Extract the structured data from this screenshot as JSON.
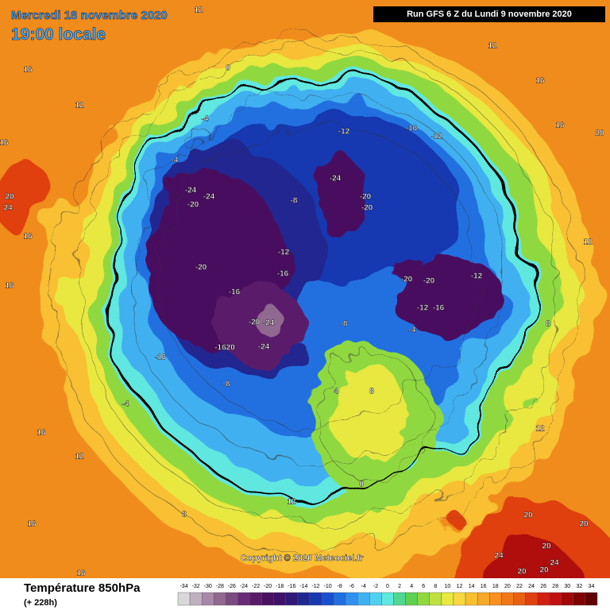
{
  "header": {
    "date": "Mercredi 18 novembre 2020",
    "time": "19:00 locale",
    "run": "Run GFS 6 Z du Lundi 9 novembre 2020"
  },
  "map": {
    "contour_labels": [
      "12",
      "16",
      "12",
      "16",
      "20",
      "24",
      "16",
      "16",
      "12",
      "16",
      "16",
      "16",
      "0",
      "-4",
      "-4",
      "-24",
      "-24",
      "-20",
      "-20",
      "-16",
      "-20",
      "-24",
      "-24",
      "-1620",
      "-12",
      "-16",
      "-12",
      "-24",
      "-20",
      "-20",
      "-12",
      "-16",
      "-8",
      "-20",
      "-20",
      "-12",
      "-16",
      "-12",
      "-8",
      "-4",
      "-8",
      "-4",
      "-16",
      "8",
      "4",
      "0",
      "12",
      "8",
      "20",
      "20",
      "24",
      "20",
      "20",
      "20",
      "24",
      "12",
      "8",
      "12",
      "16",
      "20",
      "16",
      "12"
    ],
    "copyright": "Copyright © 2020 Meteociel.fr"
  },
  "legend": {
    "title": "Température 850hPa",
    "subtitle": "(+ 228h)",
    "ticks": [
      -34,
      -32,
      -30,
      -28,
      -26,
      -24,
      -22,
      -20,
      -18,
      -16,
      -14,
      -12,
      -10,
      -8,
      -6,
      -4,
      -2,
      0,
      2,
      4,
      6,
      8,
      10,
      12,
      14,
      16,
      18,
      20,
      22,
      24,
      26,
      28,
      30,
      32,
      34
    ],
    "colors": [
      "#d8d8d8",
      "#c0b0c0",
      "#a888a8",
      "#906890",
      "#7a4a80",
      "#6a2a78",
      "#5a1a6a",
      "#4a1060",
      "#40106a",
      "#301878",
      "#202890",
      "#1838b0",
      "#1850d0",
      "#2070e0",
      "#3090f0",
      "#40b0f0",
      "#50d0f0",
      "#60e8e0",
      "#50d890",
      "#60d050",
      "#90d840",
      "#c0e040",
      "#e8e840",
      "#f8d840",
      "#f8c030",
      "#f8a828",
      "#f89020",
      "#f07818",
      "#e86010",
      "#e04010",
      "#d02010",
      "#c01010",
      "#a00808",
      "#800000",
      "#600000"
    ]
  }
}
